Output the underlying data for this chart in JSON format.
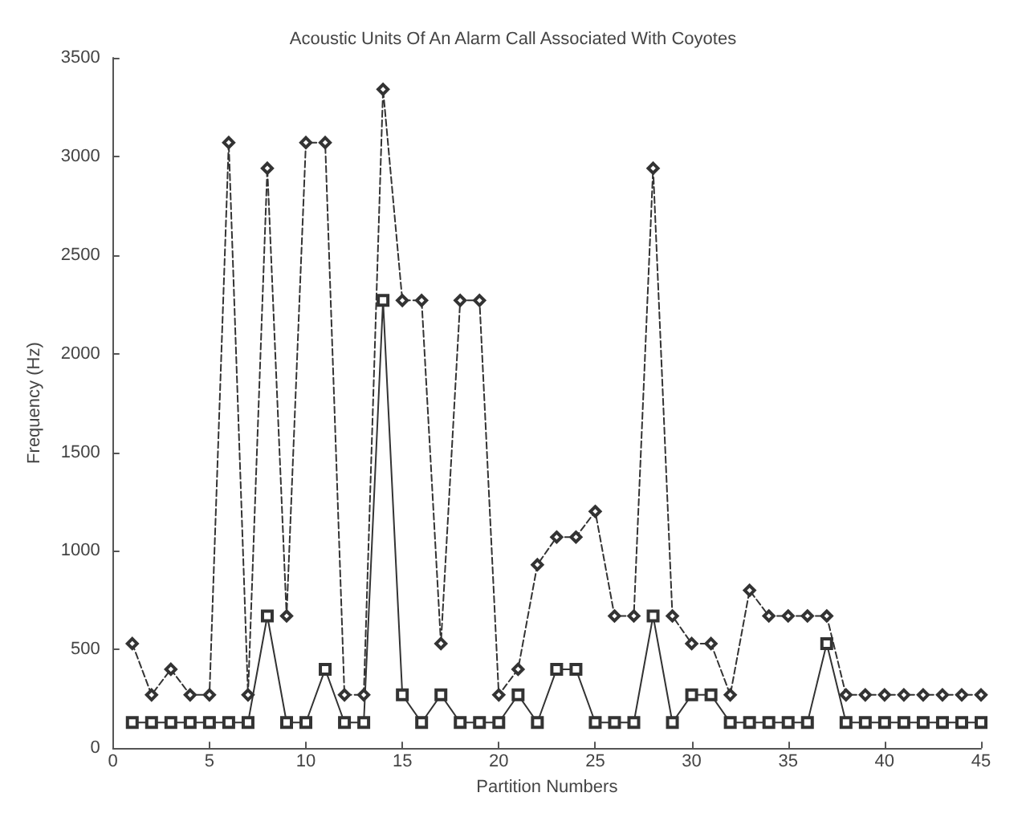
{
  "chart_data": {
    "type": "line",
    "title": "Acoustic Units Of An Alarm Call Associated With Coyotes",
    "xlabel": "Partition Numbers",
    "ylabel": "Frequency (Hz)",
    "x": [
      1,
      2,
      3,
      4,
      5,
      6,
      7,
      8,
      9,
      10,
      11,
      12,
      13,
      14,
      15,
      16,
      17,
      18,
      19,
      20,
      21,
      22,
      23,
      24,
      25,
      26,
      27,
      28,
      29,
      30,
      31,
      32,
      33,
      34,
      35,
      36,
      37,
      38,
      39,
      40,
      41,
      42,
      43,
      44,
      45
    ],
    "series": [
      {
        "color": "#333333",
        "marker": "diamond",
        "line_style": "dashed",
        "values": [
          530,
          270,
          400,
          270,
          270,
          3070,
          270,
          2940,
          670,
          3070,
          3070,
          270,
          270,
          3340,
          2270,
          2270,
          530,
          2270,
          2270,
          270,
          400,
          930,
          1070,
          1070,
          1200,
          670,
          670,
          2940,
          670,
          530,
          530,
          270,
          800,
          670,
          670,
          670,
          670,
          270,
          270,
          270,
          270,
          270,
          270,
          270,
          270
        ]
      },
      {
        "color": "#333333",
        "marker": "square",
        "line_style": "solid",
        "values": [
          130,
          130,
          130,
          130,
          130,
          130,
          130,
          670,
          130,
          130,
          400,
          130,
          130,
          2270,
          270,
          130,
          270,
          130,
          130,
          130,
          270,
          130,
          400,
          400,
          130,
          130,
          130,
          670,
          130,
          270,
          270,
          130,
          130,
          130,
          130,
          130,
          530,
          130,
          130,
          130,
          130,
          130,
          130,
          130,
          130
        ]
      }
    ],
    "xlim": [
      0,
      45
    ],
    "xticks": [
      0,
      5,
      10,
      15,
      20,
      25,
      30,
      35,
      40,
      45
    ],
    "ylim": [
      0,
      3500
    ],
    "yticks": [
      0,
      500,
      1000,
      1500,
      2000,
      2500,
      3000,
      3500
    ]
  }
}
